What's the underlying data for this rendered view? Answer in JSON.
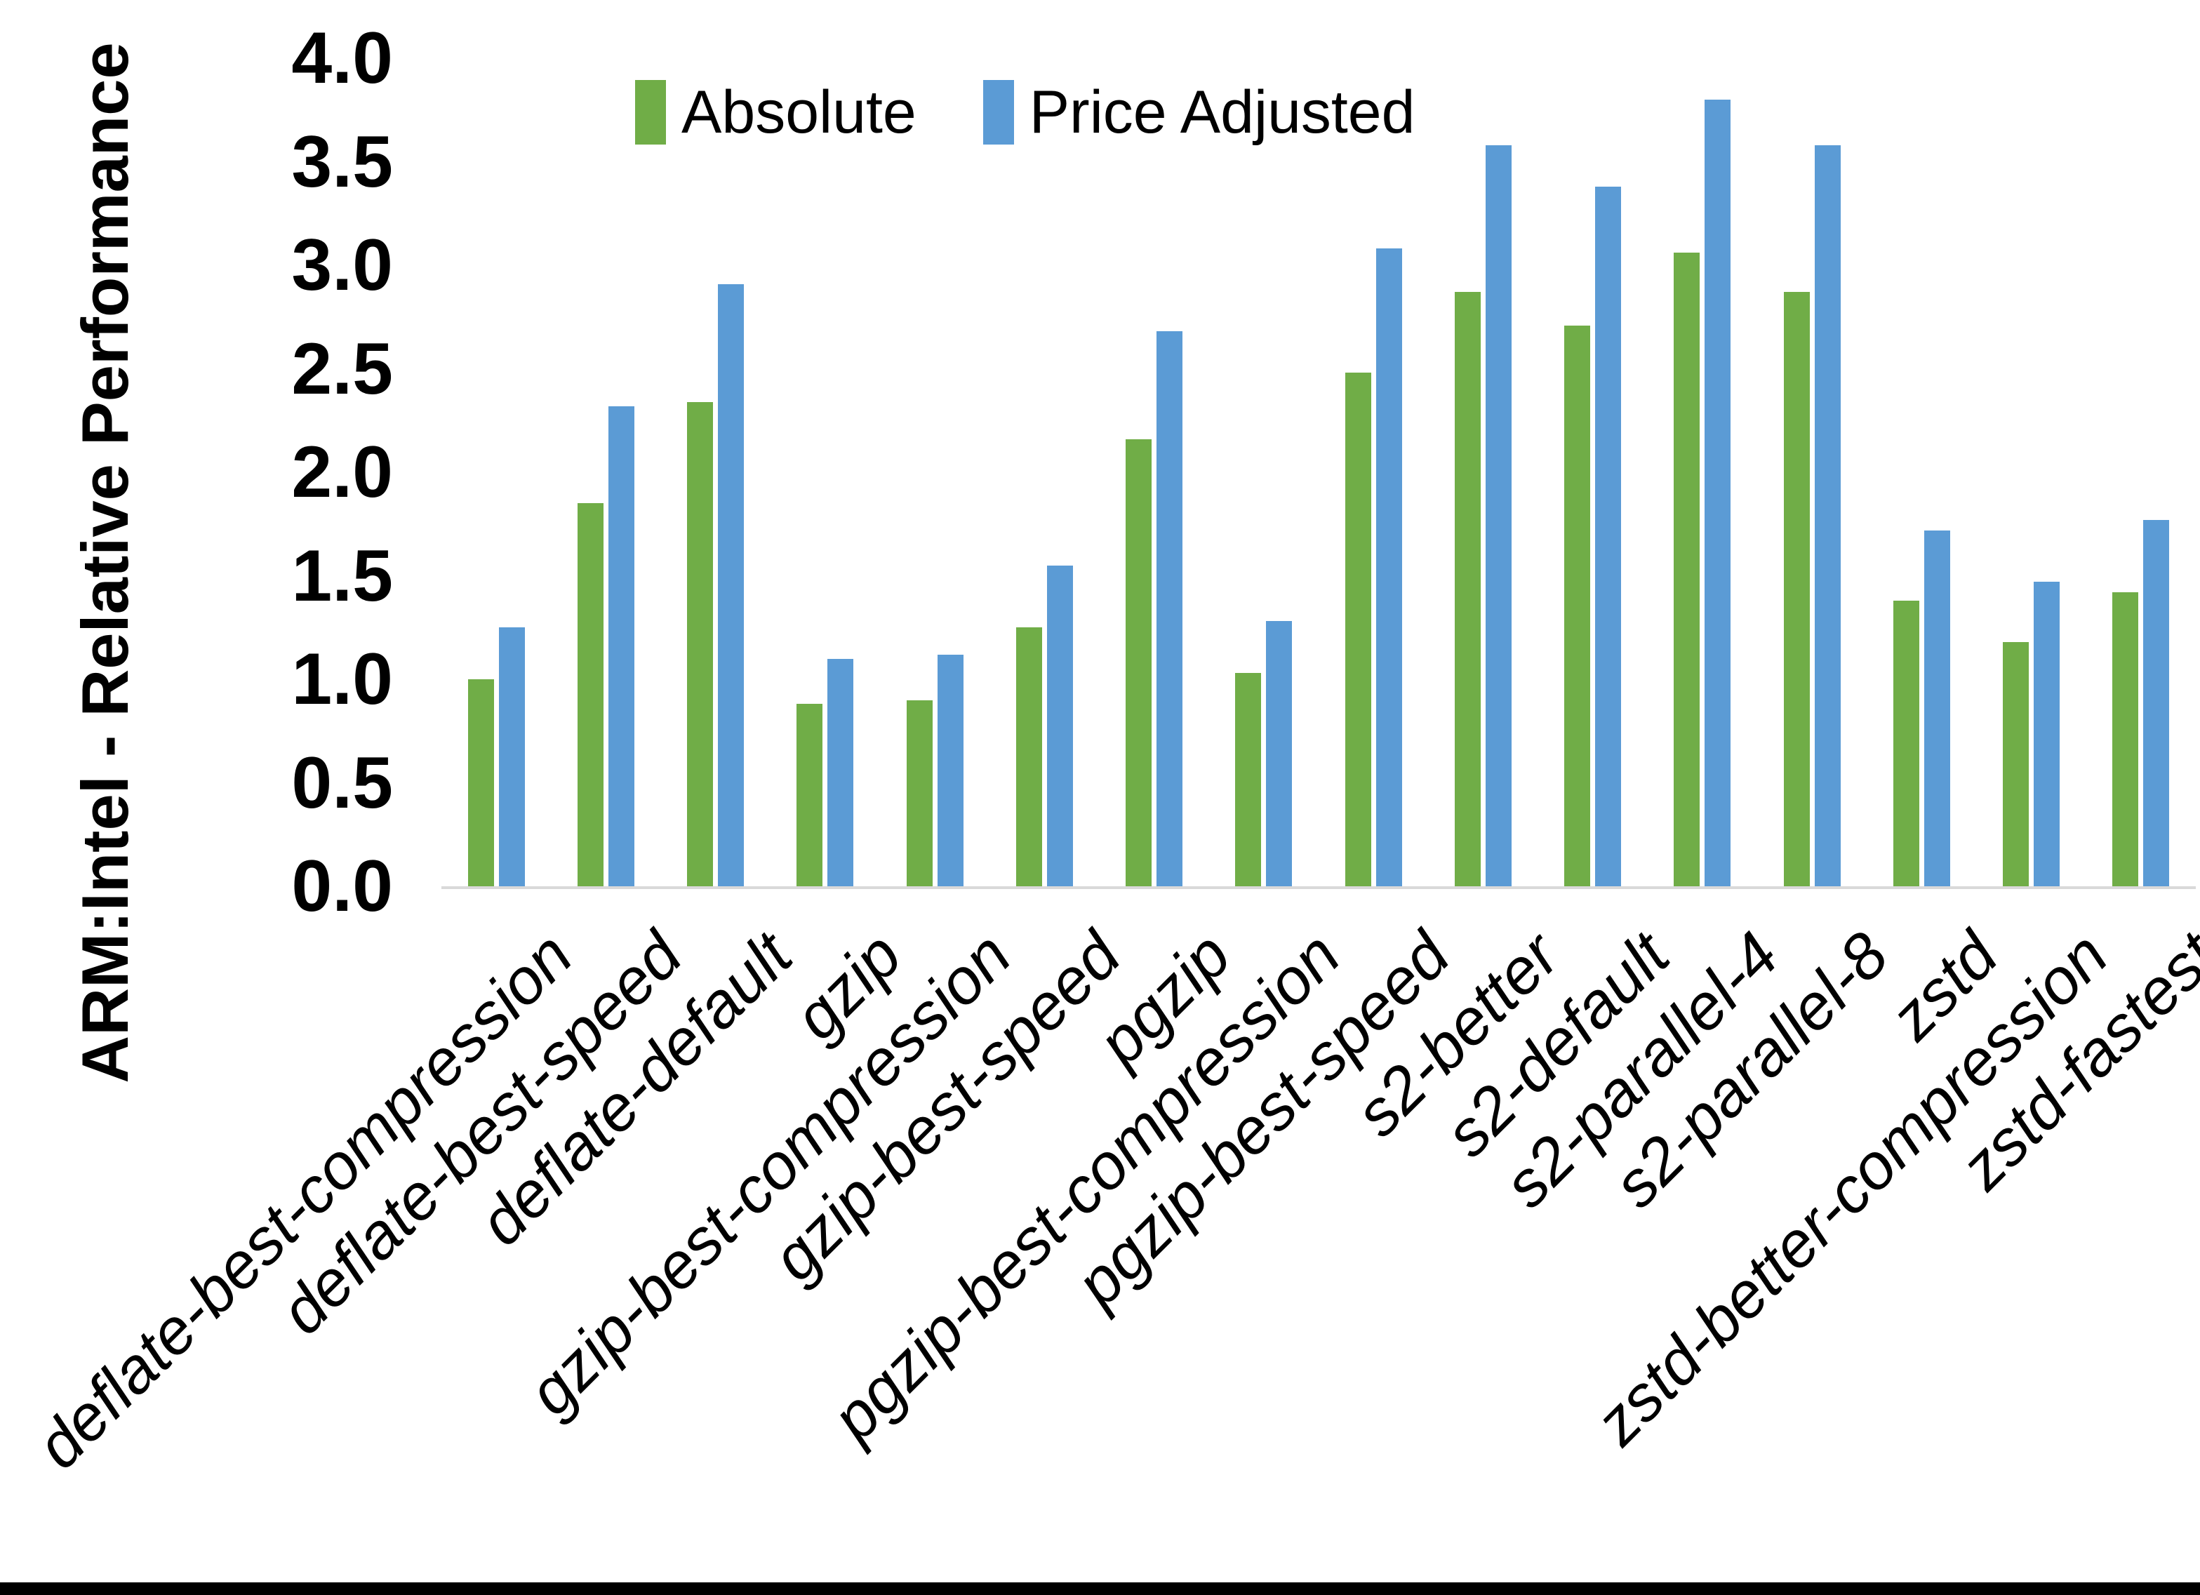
{
  "chart_data": {
    "type": "bar",
    "title": "",
    "ylabel": "ARM:Intel - Relative Performance",
    "xlabel": "",
    "ylim": [
      0.0,
      4.0
    ],
    "ytick_step": 0.5,
    "ytick_labels": [
      "0.0",
      "0.5",
      "1.0",
      "1.5",
      "2.0",
      "2.5",
      "3.0",
      "3.5",
      "4.0"
    ],
    "grid": false,
    "legend_position": "top-center",
    "axis_line_color": "#d9d9d9",
    "categories": [
      "deflate-best-compression",
      "deflate-best-speed",
      "deflate-default",
      "gzip",
      "gzip-best-compression",
      "gzip-best-speed",
      "pgzip",
      "pgzip-best-compression",
      "pgzip-best-speed",
      "s2-better",
      "s2-default",
      "s2-parallel-4",
      "s2-parallel-8",
      "zstd",
      "zstd-better-compression",
      "zstd-fastest"
    ],
    "series": [
      {
        "name": "Absolute",
        "color": "#70AD47",
        "values": [
          1.0,
          1.85,
          2.34,
          0.88,
          0.9,
          1.25,
          2.16,
          1.03,
          2.48,
          2.87,
          2.71,
          3.06,
          2.87,
          1.38,
          1.18,
          1.42
        ]
      },
      {
        "name": "Price Adjusted",
        "color": "#5B9BD5",
        "values": [
          1.25,
          2.32,
          2.91,
          1.1,
          1.12,
          1.55,
          2.68,
          1.28,
          3.08,
          3.58,
          3.38,
          3.8,
          3.58,
          1.72,
          1.47,
          1.77
        ]
      }
    ]
  }
}
